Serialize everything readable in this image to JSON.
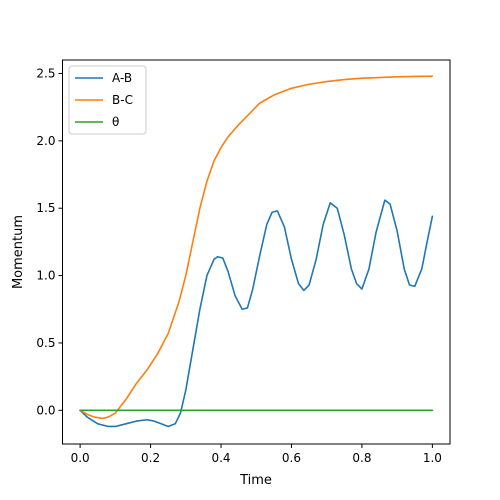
{
  "chart_data": {
    "type": "line",
    "title": "",
    "xlabel": "Time",
    "ylabel": "Momentum",
    "xlim": [
      -0.05,
      1.05
    ],
    "ylim": [
      -0.25,
      2.6
    ],
    "xticks": [
      0.0,
      0.2,
      0.4,
      0.6,
      0.8,
      1.0
    ],
    "yticks": [
      0.0,
      0.5,
      1.0,
      1.5,
      2.0,
      2.5
    ],
    "xtick_labels": [
      "0.0",
      "0.2",
      "0.4",
      "0.6",
      "0.8",
      "1.0"
    ],
    "ytick_labels": [
      "0.0",
      "0.5",
      "1.0",
      "1.5",
      "2.0",
      "2.5"
    ],
    "grid": false,
    "legend_position": "top-left",
    "series": [
      {
        "name": "A-B",
        "color": "#1f77b4",
        "x": [
          0.0,
          0.02,
          0.05,
          0.08,
          0.1,
          0.13,
          0.16,
          0.19,
          0.21,
          0.23,
          0.25,
          0.27,
          0.285,
          0.3,
          0.32,
          0.34,
          0.36,
          0.38,
          0.39,
          0.405,
          0.42,
          0.44,
          0.46,
          0.475,
          0.49,
          0.51,
          0.53,
          0.545,
          0.56,
          0.58,
          0.6,
          0.62,
          0.635,
          0.65,
          0.67,
          0.69,
          0.71,
          0.73,
          0.75,
          0.77,
          0.785,
          0.8,
          0.82,
          0.84,
          0.865,
          0.88,
          0.9,
          0.92,
          0.935,
          0.95,
          0.97,
          0.985,
          1.0
        ],
        "y": [
          0.0,
          -0.05,
          -0.1,
          -0.12,
          -0.12,
          -0.1,
          -0.08,
          -0.07,
          -0.08,
          -0.1,
          -0.12,
          -0.1,
          -0.02,
          0.15,
          0.45,
          0.75,
          1.0,
          1.12,
          1.14,
          1.13,
          1.03,
          0.85,
          0.75,
          0.76,
          0.9,
          1.15,
          1.38,
          1.47,
          1.48,
          1.36,
          1.12,
          0.94,
          0.89,
          0.93,
          1.12,
          1.38,
          1.54,
          1.5,
          1.3,
          1.05,
          0.94,
          0.9,
          1.05,
          1.32,
          1.56,
          1.53,
          1.33,
          1.05,
          0.93,
          0.92,
          1.05,
          1.25,
          1.44
        ]
      },
      {
        "name": "B-C",
        "color": "#ff7f0e",
        "x": [
          0.0,
          0.02,
          0.04,
          0.065,
          0.08,
          0.1,
          0.13,
          0.16,
          0.19,
          0.22,
          0.25,
          0.28,
          0.3,
          0.32,
          0.34,
          0.36,
          0.38,
          0.4,
          0.42,
          0.45,
          0.48,
          0.51,
          0.55,
          0.6,
          0.65,
          0.7,
          0.75,
          0.8,
          0.85,
          0.9,
          0.95,
          1.0
        ],
        "y": [
          0.0,
          -0.03,
          -0.05,
          -0.06,
          -0.05,
          -0.02,
          0.08,
          0.2,
          0.3,
          0.42,
          0.57,
          0.8,
          1.0,
          1.25,
          1.5,
          1.7,
          1.85,
          1.95,
          2.03,
          2.12,
          2.2,
          2.28,
          2.34,
          2.39,
          2.42,
          2.44,
          2.455,
          2.465,
          2.47,
          2.475,
          2.478,
          2.48
        ]
      },
      {
        "name": "θ",
        "color": "#2ca02c",
        "x": [
          0.0,
          1.0
        ],
        "y": [
          0.0,
          0.0
        ]
      }
    ]
  }
}
